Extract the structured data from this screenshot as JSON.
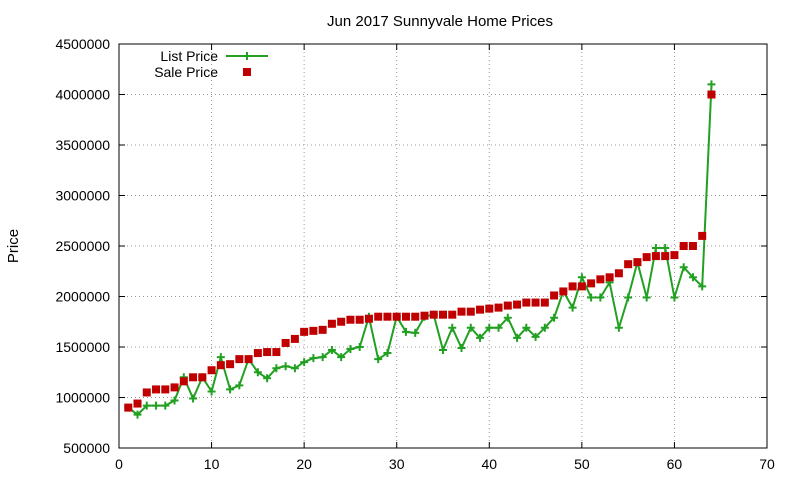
{
  "chart_data": {
    "type": "scatter",
    "title": "Jun 2017 Sunnyvale Home Prices",
    "xlabel": "",
    "ylabel": "Price",
    "xlim": [
      0,
      70
    ],
    "ylim": [
      500000,
      4500000
    ],
    "x_ticks": [
      "0",
      "10",
      "20",
      "30",
      "40",
      "50",
      "60",
      "70"
    ],
    "y_ticks": [
      "500000",
      "1000000",
      "1500000",
      "2000000",
      "2500000",
      "3000000",
      "3500000",
      "4000000",
      "4500000"
    ],
    "grid": true,
    "legend_position": "top-left",
    "x": [
      1,
      2,
      3,
      4,
      5,
      6,
      7,
      8,
      9,
      10,
      11,
      12,
      13,
      14,
      15,
      16,
      17,
      18,
      19,
      20,
      21,
      22,
      23,
      24,
      25,
      26,
      27,
      28,
      29,
      30,
      31,
      32,
      33,
      34,
      35,
      36,
      37,
      38,
      39,
      40,
      41,
      42,
      43,
      44,
      45,
      46,
      47,
      48,
      49,
      50,
      51,
      52,
      53,
      54,
      55,
      56,
      57,
      58,
      59,
      60,
      61,
      62,
      63,
      64
    ],
    "series": [
      {
        "name": "List Price",
        "style": "linespoints",
        "color": "#22a022",
        "values": [
          900000,
          830000,
          920000,
          920000,
          920000,
          970000,
          1200000,
          990000,
          1200000,
          1060000,
          1400000,
          1080000,
          1120000,
          1380000,
          1250000,
          1190000,
          1290000,
          1310000,
          1290000,
          1350000,
          1390000,
          1400000,
          1470000,
          1400000,
          1480000,
          1500000,
          1800000,
          1380000,
          1440000,
          1800000,
          1650000,
          1640000,
          1800000,
          1820000,
          1470000,
          1690000,
          1490000,
          1690000,
          1590000,
          1690000,
          1690000,
          1790000,
          1590000,
          1690000,
          1600000,
          1690000,
          1790000,
          2050000,
          1890000,
          2190000,
          1990000,
          1990000,
          2140000,
          1690000,
          1990000,
          2340000,
          1990000,
          2480000,
          2480000,
          1990000,
          2290000,
          2190000,
          2100000,
          4100000
        ]
      },
      {
        "name": "Sale Price",
        "style": "points",
        "color": "#c00000",
        "values": [
          900000,
          940000,
          1050000,
          1080000,
          1080000,
          1100000,
          1160000,
          1200000,
          1200000,
          1270000,
          1320000,
          1330000,
          1380000,
          1380000,
          1440000,
          1450000,
          1450000,
          1540000,
          1580000,
          1650000,
          1660000,
          1670000,
          1730000,
          1750000,
          1770000,
          1770000,
          1780000,
          1800000,
          1800000,
          1800000,
          1800000,
          1800000,
          1810000,
          1820000,
          1820000,
          1820000,
          1850000,
          1850000,
          1870000,
          1880000,
          1890000,
          1910000,
          1920000,
          1940000,
          1940000,
          1940000,
          2010000,
          2050000,
          2100000,
          2100000,
          2130000,
          2170000,
          2190000,
          2230000,
          2320000,
          2340000,
          2390000,
          2400000,
          2400000,
          2410000,
          2500000,
          2500000,
          2600000,
          4000000
        ]
      }
    ]
  }
}
